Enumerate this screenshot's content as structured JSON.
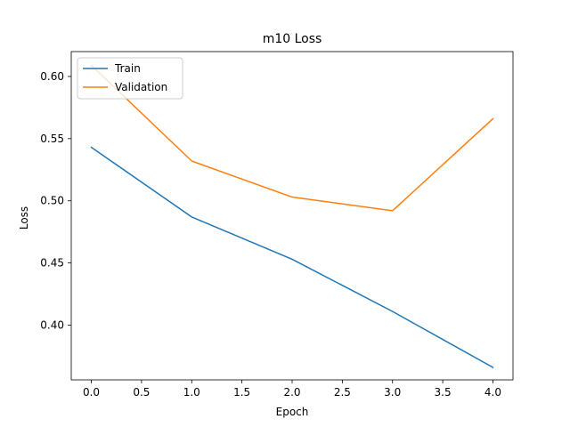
{
  "chart_data": {
    "type": "line",
    "title": "m10 Loss",
    "xlabel": "Epoch",
    "ylabel": "Loss",
    "x": [
      0,
      1,
      2,
      3,
      4
    ],
    "series": [
      {
        "name": "Train",
        "values": [
          0.543,
          0.487,
          0.453,
          0.411,
          0.366
        ],
        "color": "#1f77b4"
      },
      {
        "name": "Validation",
        "values": [
          0.609,
          0.532,
          0.503,
          0.492,
          0.566
        ],
        "color": "#ff7f0e"
      }
    ],
    "xlim": [
      -0.2,
      4.2
    ],
    "ylim": [
      0.356,
      0.62
    ],
    "xticks": [
      "0.0",
      "0.5",
      "1.0",
      "1.5",
      "2.0",
      "2.5",
      "3.0",
      "3.5",
      "4.0"
    ],
    "yticks": [
      "0.40",
      "0.45",
      "0.50",
      "0.55",
      "0.60"
    ],
    "grid": false,
    "legend_position": "top-left"
  }
}
